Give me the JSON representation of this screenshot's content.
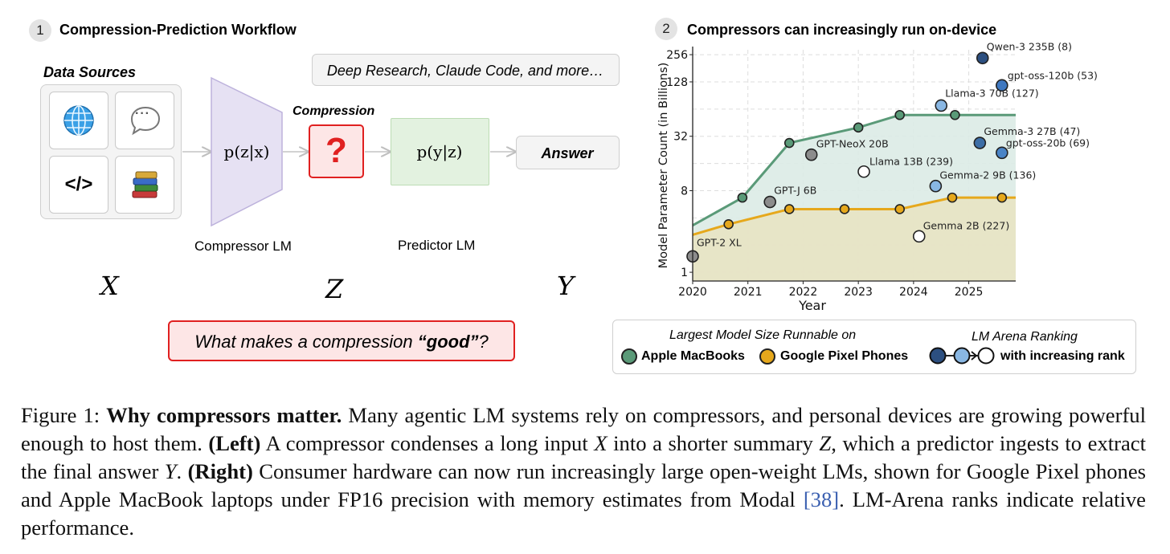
{
  "left_panel": {
    "number": "1",
    "title": "Compression-Prediction Workflow",
    "data_sources_label": "Data Sources",
    "code_icon_text": "</>",
    "chat_icon_text": "···",
    "compressor_formula": "p(z|x)",
    "compression_label": "Compression",
    "question_mark": "?",
    "predictor_formula": "p(y|z)",
    "deep_research_text": "Deep Research, Claude Code, and more…",
    "answer_label": "Answer",
    "compressor_lm_label": "Compressor LM",
    "predictor_lm_label": "Predictor LM",
    "var_x": "X",
    "var_z": "Z",
    "var_y": "Y",
    "question_prefix": "What makes a compression ",
    "question_bold": "“good”",
    "question_suffix": "?",
    "colors": {
      "compressor_fill": "#e6e1f3",
      "compressor_stroke": "#bdb2dc",
      "compression_red": "#e02020",
      "predictor_fill": "#e3f2e0",
      "predictor_stroke": "#bcdcb4"
    }
  },
  "right_panel": {
    "number": "2",
    "title": "Compressors can increasingly run on-device"
  },
  "chart_data": {
    "type": "line",
    "title": "Compressors can increasingly run on-device",
    "xlabel": "Year",
    "ylabel": "Model Parameter Count (in Billions)",
    "y_scale": "log2",
    "xlim": [
      2020.0,
      2025.85
    ],
    "ylim": [
      0.8,
      290
    ],
    "x_ticks": [
      2020,
      2021,
      2022,
      2023,
      2024,
      2025
    ],
    "x_tick_labels": [
      "2020",
      "2021",
      "2022",
      "2023",
      "2024",
      "2025"
    ],
    "y_ticks": [
      1,
      8,
      32,
      128,
      256
    ],
    "y_tick_labels": [
      "1",
      "8",
      "32",
      "128",
      "256"
    ],
    "grid": true,
    "series": [
      {
        "name": "Apple MacBooks",
        "color": "#5a9a78",
        "fill": "#dcebe6",
        "line_x": [
          2020.0,
          2020.9,
          2021.75,
          2023.0,
          2023.75,
          2024.75,
          2025.85
        ],
        "line_y": [
          3.3,
          6.7,
          27,
          40,
          55,
          55,
          55
        ],
        "marker_x": [
          2020.9,
          2021.75,
          2023.0,
          2023.75,
          2024.75
        ],
        "marker_y": [
          6.7,
          27,
          40,
          55,
          55
        ]
      },
      {
        "name": "Google Pixel Phones",
        "color": "#e6a81c",
        "fill": "#e8e3c3",
        "line_x": [
          2020.0,
          2020.65,
          2021.75,
          2022.75,
          2023.75,
          2024.7,
          2025.85
        ],
        "line_y": [
          2.6,
          3.4,
          5.0,
          5.0,
          5.0,
          6.7,
          6.7
        ],
        "marker_x": [
          2020.65,
          2021.75,
          2022.75,
          2023.75,
          2024.7,
          2025.6
        ],
        "marker_y": [
          3.4,
          5.0,
          5.0,
          5.0,
          6.7,
          6.7
        ]
      }
    ],
    "models": [
      {
        "label": "GPT-2 XL",
        "x": 2020.0,
        "y": 1.5,
        "color": "#8c8c8c"
      },
      {
        "label": "GPT-J 6B",
        "x": 2021.4,
        "y": 6.0,
        "color": "#8c8c8c"
      },
      {
        "label": "GPT-NeoX 20B",
        "x": 2022.15,
        "y": 20,
        "color": "#8c8c8c"
      },
      {
        "label": "Llama 13B (239)",
        "x": 2023.1,
        "y": 13,
        "color": "#ffffff"
      },
      {
        "label": "Llama-3 70B (127)",
        "x": 2024.5,
        "y": 70,
        "color": "#89b7e3"
      },
      {
        "label": "Gemma 2B (227)",
        "x": 2024.1,
        "y": 2.5,
        "color": "#ffffff"
      },
      {
        "label": "Gemma-2 9B (136)",
        "x": 2024.4,
        "y": 9,
        "color": "#89b7e3"
      },
      {
        "label": "Gemma-3 27B (47)",
        "x": 2025.2,
        "y": 27,
        "color": "#3d6ea6"
      },
      {
        "label": "gpt-oss-20b (69)",
        "x": 2025.6,
        "y": 21,
        "color": "#4a84c6"
      },
      {
        "label": "Qwen-3 235B (8)",
        "x": 2025.25,
        "y": 235,
        "color": "#2c4f80"
      },
      {
        "label": "gpt-oss-120b (53)",
        "x": 2025.6,
        "y": 117,
        "color": "#3f78c0"
      }
    ]
  },
  "legend": {
    "title_left": "Largest Model Size Runnable on",
    "item_macbook": "Apple MacBooks",
    "item_pixel": "Google Pixel Phones",
    "title_right": "LM Arena Ranking",
    "ranking_text": "with increasing rank",
    "macbook_color": "#5a9a78",
    "pixel_color": "#e6a81c",
    "rank_colors": [
      "#2c4f80",
      "#89b7e3",
      "#ffffff"
    ]
  },
  "caption": {
    "label": "Figure 1: ",
    "bold_title": "Why compressors matter.",
    "seg1": " Many agentic LM systems rely on compressors, and personal devices are growing powerful enough to host them. ",
    "left_bold": "(Left)",
    "seg2": " A compressor condenses a long input ",
    "var_x": "X",
    "seg3": " into a shorter summary ",
    "var_z": "Z",
    "seg4": ", which a predictor ingests to extract the final answer ",
    "var_y": "Y",
    "seg5": ". ",
    "right_bold": "(Right)",
    "seg6": " Consumer hardware can now run increasingly large open-weight LMs, shown for Google Pixel phones and Apple MacBook laptops under FP16 precision with memory estimates from Modal ",
    "ref": "[38]",
    "seg7": ". LM-Arena ranks indicate relative performance."
  }
}
